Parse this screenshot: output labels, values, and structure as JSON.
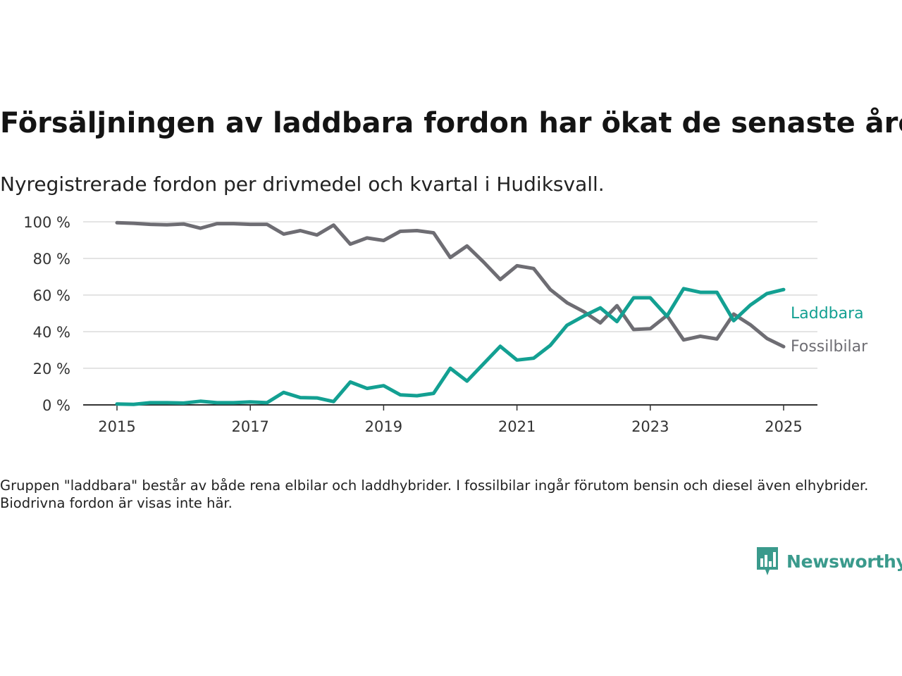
{
  "title": "Försäljningen av laddbara fordon har ökat de senaste åren",
  "subtitle": "Nyregistrerade fordon per drivmedel och kvartal i Hudiksvall.",
  "note": "Gruppen \"laddbara\" består av både rena elbilar och laddhybrider. I fossilbilar ingår förutom bensin och diesel även elhybrider. Biodrivna fordon är visas inte här.",
  "brand": {
    "name": "Newsworthy",
    "icon": "newsworthy-logo-icon",
    "color": "#3a9a8c"
  },
  "chart_data": {
    "type": "line",
    "title": "Försäljningen av laddbara fordon har ökat de senaste åren",
    "subtitle": "Nyregistrerade fordon per drivmedel och kvartal i Hudiksvall.",
    "xlabel": "",
    "ylabel": "",
    "x_ticks": [
      "2015",
      "2017",
      "2019",
      "2021",
      "2023",
      "2025"
    ],
    "y_ticks": [
      "0 %",
      "20 %",
      "40 %",
      "60 %",
      "80 %",
      "100 %"
    ],
    "xlim": [
      2014.5,
      2025.5
    ],
    "ylim": [
      0,
      100
    ],
    "grid": true,
    "legend": "direct labels at line ends (right)",
    "x": [
      2015.0,
      2015.25,
      2015.5,
      2015.75,
      2016.0,
      2016.25,
      2016.5,
      2016.75,
      2017.0,
      2017.25,
      2017.5,
      2017.75,
      2018.0,
      2018.25,
      2018.5,
      2018.75,
      2019.0,
      2019.25,
      2019.5,
      2019.75,
      2020.0,
      2020.25,
      2020.5,
      2020.75,
      2021.0,
      2021.25,
      2021.5,
      2021.75,
      2022.0,
      2022.25,
      2022.5,
      2022.75,
      2023.0,
      2023.25,
      2023.5,
      2023.75,
      2024.0,
      2024.25,
      2024.5,
      2024.75,
      2025.0
    ],
    "series": [
      {
        "name": "Laddbara",
        "color": "#13a092",
        "values": [
          0.5,
          0.3,
          1.2,
          1.2,
          1.0,
          2.0,
          1.2,
          1.2,
          1.6,
          1.2,
          6.8,
          4.0,
          3.8,
          1.8,
          12.5,
          9.0,
          10.5,
          5.5,
          5.0,
          6.3,
          20.0,
          13.0,
          22.5,
          32.0,
          24.5,
          25.5,
          32.5,
          43.5,
          48.5,
          53.0,
          45.5,
          58.5,
          58.5,
          48.5,
          63.5,
          61.5,
          61.5,
          46.0,
          54.5,
          60.8,
          63.0
        ]
      },
      {
        "name": "Fossilbilar",
        "color": "#6e6d73",
        "values": [
          99.5,
          99.2,
          98.6,
          98.4,
          98.8,
          96.5,
          99.0,
          99.0,
          98.6,
          98.6,
          93.3,
          95.2,
          92.8,
          98.2,
          87.8,
          91.2,
          89.8,
          94.8,
          95.2,
          94.0,
          80.5,
          86.8,
          78.0,
          68.5,
          76.0,
          74.5,
          63.0,
          55.8,
          51.0,
          44.8,
          54.2,
          41.2,
          41.6,
          48.8,
          35.5,
          37.5,
          36.0,
          49.6,
          43.8,
          36.3,
          31.8
        ]
      }
    ]
  }
}
